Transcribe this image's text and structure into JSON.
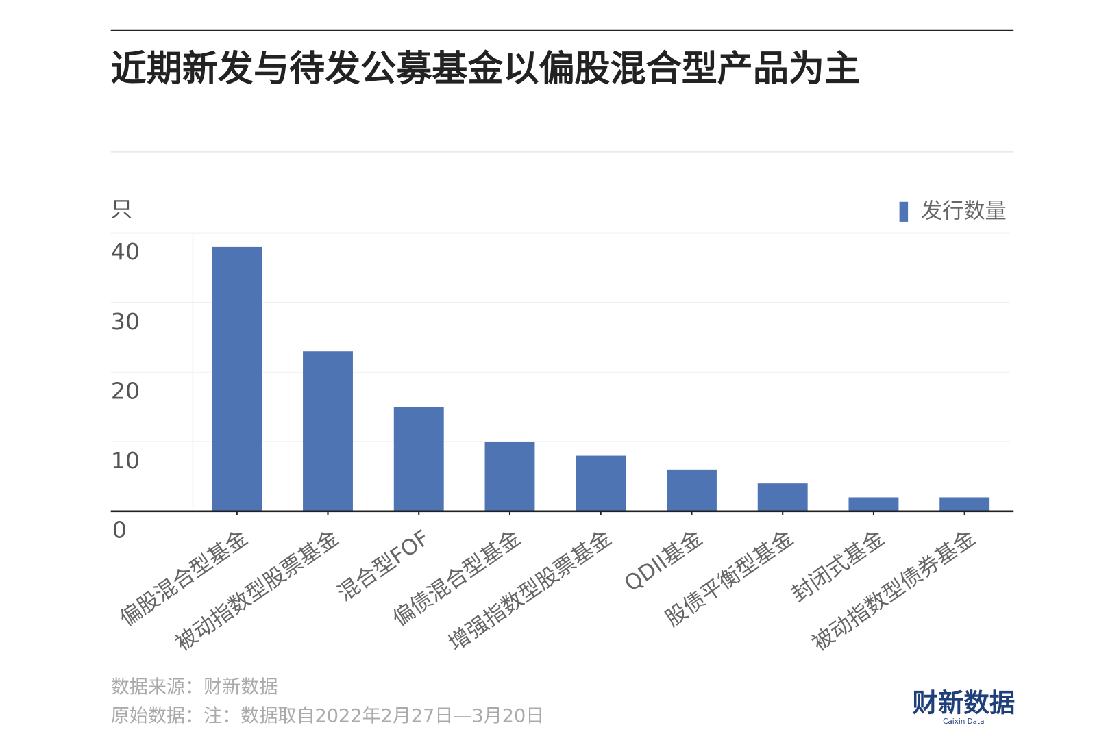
{
  "chart_data": {
    "type": "bar",
    "title": "近期新发与待发公募基金以偏股混合型产品为主",
    "y_label": "只",
    "categories": [
      "偏股混合型基金",
      "被动指数型股票基金",
      "混合型FOF",
      "偏债混合型基金",
      "增强指数型股票基金",
      "QDII基金",
      "股债平衡型基金",
      "封闭式基金",
      "被动指数型债券基金"
    ],
    "series": [
      {
        "name": "发行数量",
        "color": "#4e74b3",
        "values": [
          38,
          23,
          15,
          10,
          8,
          6,
          4,
          2,
          2
        ]
      }
    ],
    "ylim": [
      0,
      40
    ],
    "yticks": [
      0,
      10,
      20,
      30,
      40
    ],
    "grid": true,
    "legend": "top-right",
    "source": "数据来源：财新数据",
    "note": "原始数据：注：数据取自2022年2月27日—3月20日",
    "logo": "财新数据",
    "logo_sub": "Caixin Data"
  }
}
